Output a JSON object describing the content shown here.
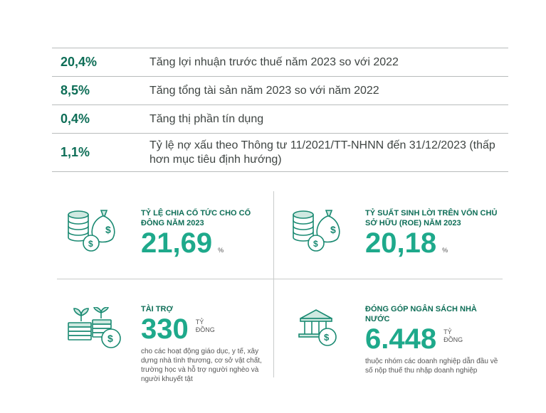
{
  "table": {
    "rows": [
      {
        "value": "20,4%",
        "desc": "Tăng lợi nhuận trước thuế năm 2023 so với 2022"
      },
      {
        "value": "8,5%",
        "desc": "Tăng tổng tài sản năm 2023 so với năm 2022"
      },
      {
        "value": "0,4%",
        "desc": "Tăng thị phần tín dụng"
      },
      {
        "value": "1,1%",
        "desc": "Tỷ lệ nợ xấu theo Thông tư 11/2021/TT-NHNN đến 31/12/2023 (thấp hơn mục tiêu định hướng)"
      }
    ]
  },
  "stats": {
    "dividend": {
      "label": "TỶ LỆ CHIA CỔ TỨC CHO CỔ ĐÔNG NĂM 2023",
      "value": "21,69",
      "unit": "%"
    },
    "roe": {
      "label": "TỶ SUẤT SINH LỜI TRÊN VỐN CHỦ SỞ HỮU (ROE) NĂM 2023",
      "value": "20,18",
      "unit": "%"
    },
    "sponsor": {
      "label": "TÀI TRỢ",
      "value": "330",
      "unit_line1": "TỶ",
      "unit_line2": "ĐỒNG",
      "note": "cho các hoạt động giáo dục, y tế, xây dựng nhà tình thương, cơ sở vật chất, trường học và hỗ trợ người nghèo và người khuyết tật"
    },
    "budget": {
      "label": "ĐÓNG GÓP NGÂN SÁCH NHÀ NƯỚC",
      "value": "6.448",
      "unit_line1": "TỶ",
      "unit_line2": "ĐỒNG",
      "note": "thuộc nhóm các doanh nghiệp dẫn đầu về số nộp thuế thu nhập doanh nghiệp"
    }
  },
  "colors": {
    "accent": "#1ea98b",
    "dark_accent": "#0e6e57"
  },
  "icons": [
    "coins-money-bag-icon",
    "coins-money-bag-icon",
    "plant-coins-icon",
    "bank-icon"
  ]
}
